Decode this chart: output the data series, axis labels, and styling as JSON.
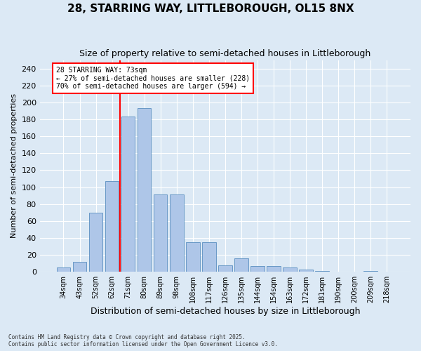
{
  "title": "28, STARRING WAY, LITTLEBOROUGH, OL15 8NX",
  "subtitle": "Size of property relative to semi-detached houses in Littleborough",
  "xlabel": "Distribution of semi-detached houses by size in Littleborough",
  "ylabel": "Number of semi-detached properties",
  "categories": [
    "34sqm",
    "43sqm",
    "52sqm",
    "62sqm",
    "71sqm",
    "80sqm",
    "89sqm",
    "98sqm",
    "108sqm",
    "117sqm",
    "126sqm",
    "135sqm",
    "144sqm",
    "154sqm",
    "163sqm",
    "172sqm",
    "181sqm",
    "190sqm",
    "200sqm",
    "209sqm",
    "218sqm"
  ],
  "values": [
    5,
    12,
    70,
    107,
    183,
    193,
    91,
    91,
    35,
    35,
    8,
    16,
    7,
    7,
    5,
    3,
    1,
    0,
    0,
    1,
    0
  ],
  "bar_color": "#aec6e8",
  "bar_edge_color": "#5a8fc0",
  "property_size_label": "28 STARRING WAY: 73sqm",
  "smaller_pct": 27,
  "smaller_count": 228,
  "larger_pct": 70,
  "larger_count": 594,
  "vline_color": "red",
  "vline_x_index": 4,
  "ylim": [
    0,
    250
  ],
  "yticks": [
    0,
    20,
    40,
    60,
    80,
    100,
    120,
    140,
    160,
    180,
    200,
    220,
    240
  ],
  "background_color": "#dce9f5",
  "footer": "Contains HM Land Registry data © Crown copyright and database right 2025.\nContains public sector information licensed under the Open Government Licence v3.0.",
  "title_fontsize": 11,
  "subtitle_fontsize": 9,
  "xlabel_fontsize": 9,
  "ylabel_fontsize": 8
}
